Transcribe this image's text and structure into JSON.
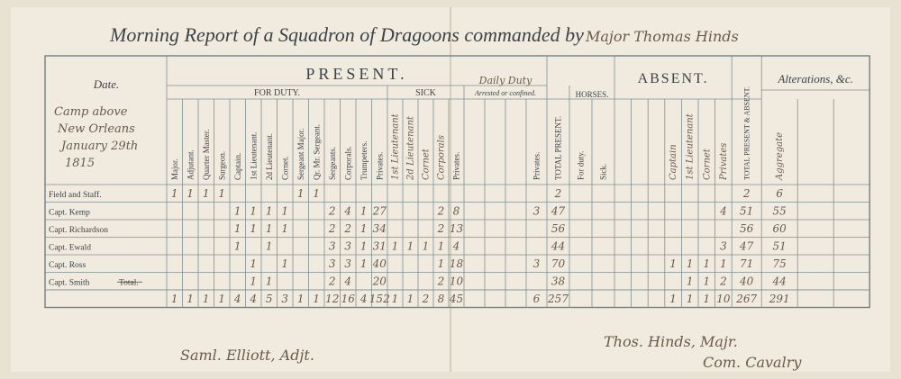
{
  "header": {
    "title": "Morning Report of a Squadron of Dragoons commanded by",
    "commander": "Major Thomas Hinds"
  },
  "table": {
    "date_heading": "Date.",
    "date_lines": [
      "Camp above",
      "New Orleans",
      "January 29th",
      "1815"
    ],
    "groups": {
      "present": "PRESENT.",
      "for_duty": "FOR DUTY.",
      "sick": "SICK",
      "daily_duty": "Daily Duty",
      "arrested": "Arrested or confined.",
      "horses": "HORSES.",
      "absent": "ABSENT.",
      "total_all": "TOTAL PRESENT & ABSENT.",
      "alterations": "Alterations, &c."
    },
    "columns": [
      "Major.",
      "Adjutant.",
      "Quarter Master.",
      "Surgeon.",
      "Captain.",
      "1st Lieutenant.",
      "2d Lieutenant.",
      "Cornet.",
      "Sergeant Major.",
      "Qr. Mr. Sergeant.",
      "Sergeants.",
      "Corporals.",
      "Trumpeters.",
      "Privates.",
      "1st Lieutenant",
      "2d Lieutenant",
      "Cornet",
      "Corporals",
      "Privates.",
      null,
      null,
      null,
      "Privates.",
      "TOTAL PRESENT.",
      "For duty.",
      "Sick.",
      null,
      null,
      null,
      "Captain",
      "1st Lieutenant",
      "Cornet",
      "Privates",
      null,
      "Aggregate",
      null,
      null
    ],
    "rows": [
      {
        "label": "Field and Staff.",
        "cells": [
          1,
          1,
          1,
          1,
          null,
          null,
          null,
          null,
          1,
          1,
          null,
          null,
          null,
          null,
          null,
          null,
          null,
          null,
          null,
          null,
          null,
          null,
          null,
          2,
          null,
          null,
          null,
          null,
          null,
          null,
          null,
          null,
          null,
          2,
          6,
          null,
          null
        ]
      },
      {
        "label": "Capt. Kemp",
        "cells": [
          null,
          null,
          null,
          null,
          1,
          1,
          1,
          1,
          null,
          null,
          2,
          4,
          1,
          27,
          null,
          null,
          null,
          2,
          8,
          null,
          null,
          null,
          3,
          47,
          null,
          null,
          null,
          null,
          null,
          null,
          null,
          null,
          4,
          51,
          55,
          null,
          null
        ]
      },
      {
        "label": "Capt. Richardson",
        "cells": [
          null,
          null,
          null,
          null,
          1,
          1,
          1,
          1,
          null,
          null,
          2,
          2,
          1,
          34,
          null,
          null,
          null,
          2,
          13,
          null,
          null,
          null,
          null,
          56,
          null,
          null,
          null,
          null,
          null,
          null,
          null,
          null,
          null,
          56,
          60,
          null,
          null
        ]
      },
      {
        "label": "Capt. Ewald",
        "cells": [
          null,
          null,
          null,
          null,
          1,
          null,
          1,
          null,
          null,
          null,
          3,
          3,
          1,
          31,
          1,
          1,
          1,
          1,
          4,
          null,
          null,
          null,
          null,
          44,
          null,
          null,
          null,
          null,
          null,
          null,
          null,
          null,
          3,
          47,
          51,
          null,
          null
        ]
      },
      {
        "label": "Capt. Ross",
        "cells": [
          null,
          null,
          null,
          null,
          null,
          1,
          null,
          1,
          null,
          null,
          3,
          3,
          1,
          40,
          null,
          null,
          null,
          1,
          18,
          null,
          null,
          null,
          3,
          70,
          null,
          null,
          null,
          null,
          null,
          1,
          1,
          1,
          1,
          71,
          75,
          null,
          null
        ]
      },
      {
        "label": "Capt. Smith",
        "struck": "Total.",
        "cells": [
          null,
          null,
          null,
          null,
          null,
          1,
          1,
          null,
          null,
          null,
          2,
          4,
          null,
          20,
          null,
          null,
          null,
          2,
          10,
          null,
          null,
          null,
          null,
          38,
          null,
          null,
          null,
          null,
          null,
          null,
          1,
          1,
          2,
          40,
          44,
          null,
          null
        ]
      },
      {
        "label": null,
        "cells": [
          1,
          1,
          1,
          1,
          4,
          4,
          5,
          3,
          1,
          1,
          12,
          16,
          4,
          152,
          1,
          1,
          2,
          8,
          45,
          null,
          null,
          null,
          6,
          257,
          null,
          null,
          null,
          null,
          null,
          1,
          1,
          1,
          10,
          267,
          291,
          null,
          null
        ]
      }
    ]
  },
  "signatures": {
    "adjutant": "Saml. Elliott, Adjt.",
    "major": "Thos. Hinds, Majr.",
    "command": "Com. Cavalry"
  }
}
